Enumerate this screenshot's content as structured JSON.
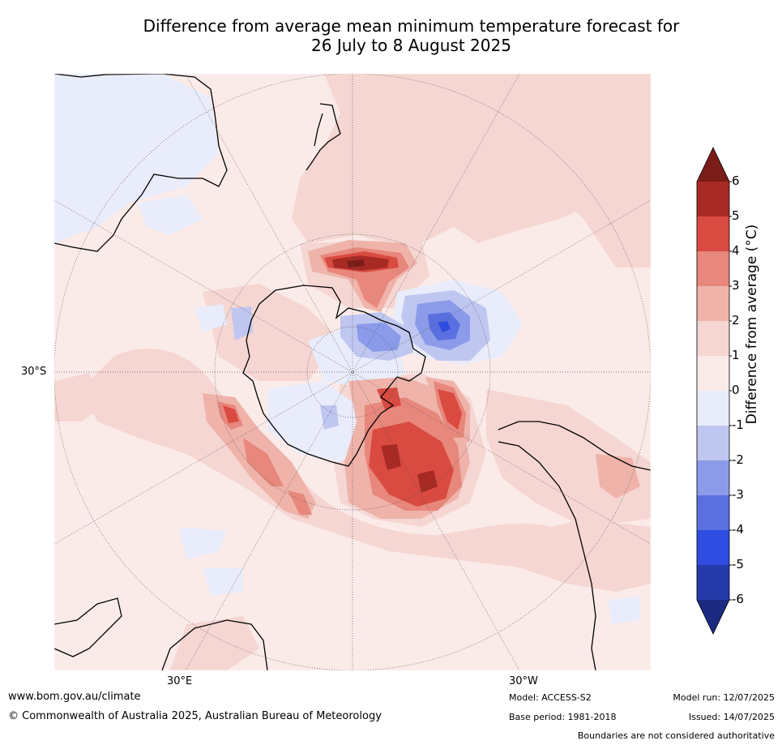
{
  "title_line1": "Difference from average mean minimum temperature forecast for",
  "title_line2": "26 July to 8 August 2025",
  "map": {
    "lat_label": "30°S",
    "lon_label_left": "30°E",
    "lon_label_right": "30°W"
  },
  "colorbar": {
    "title": "Difference from average (°C)",
    "ticks": [
      "6",
      "5",
      "4",
      "3",
      "2",
      "1",
      "0",
      "-1",
      "-2",
      "-3",
      "-4",
      "-5",
      "-6"
    ],
    "colors": {
      "above6": "#7a1d18",
      "c5_6": "#a82a24",
      "c4_5": "#d94a40",
      "c3_4": "#e8877c",
      "c2_3": "#efb3aa",
      "c1_2": "#f5d6d2",
      "c0_1": "#fbebe8",
      "cm1_0": "#e9ecfa",
      "cm2_m1": "#bfc7f1",
      "cm3_m2": "#8b9bea",
      "cm4_m3": "#5a6fe0",
      "cm5_m4": "#2f4de0",
      "cm6_m5": "#243aa8",
      "below6": "#1b2a80"
    }
  },
  "footer": {
    "url": "www.bom.gov.au/climate",
    "copyright": "© Commonwealth of Australia 2025, Australian Bureau of Meteorology",
    "model": "Model: ACCESS-S2",
    "base_period": "Base period: 1981-2018",
    "model_run": "Model run: 12/07/2025",
    "issued": "Issued: 14/07/2025",
    "disclaimer": "Boundaries are not considered authoritative"
  }
}
